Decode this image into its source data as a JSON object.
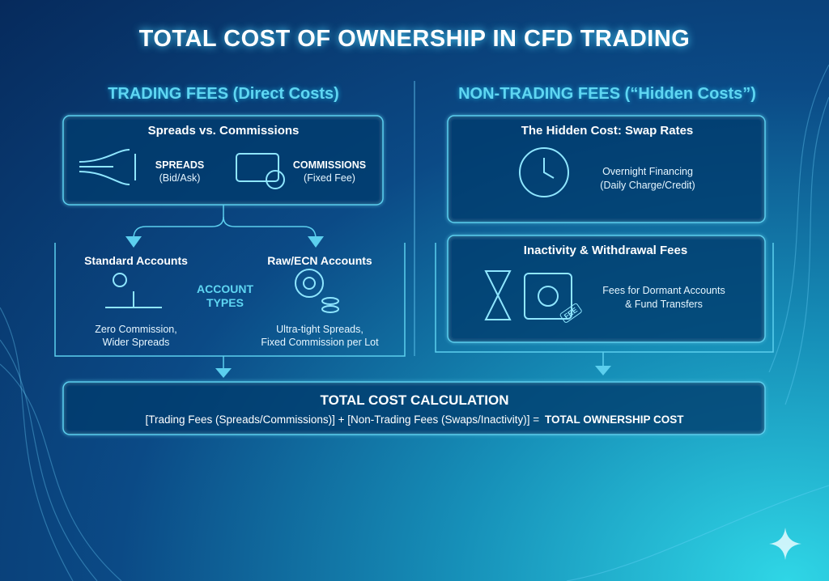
{
  "title": "TOTAL COST OF OWNERSHIP IN CFD TRADING",
  "trading_fees": {
    "heading": "TRADING FEES (Direct Costs)",
    "comparison": {
      "title": "Spreads vs. Commissions",
      "spreads": {
        "label": "SPREADS",
        "detail": "(Bid/Ask)"
      },
      "commissions": {
        "label": "COMMISSIONS",
        "detail": "(Fixed Fee)"
      }
    },
    "account_types": {
      "label": [
        "ACCOUNT",
        "TYPES"
      ],
      "standard": {
        "title": "Standard Accounts",
        "caption": [
          "Zero Commission,",
          "Wider Spreads"
        ]
      },
      "raw_ecn": {
        "title": "Raw/ECN Accounts",
        "caption": [
          "Ultra-tight Spreads,",
          "Fixed Commission per Lot"
        ]
      }
    }
  },
  "non_trading_fees": {
    "heading": "NON-TRADING FEES (“Hidden Costs”)",
    "swap_rates": {
      "title": "The Hidden Cost: Swap Rates",
      "caption": [
        "Overnight Financing",
        "(Daily Charge/Credit)"
      ]
    },
    "inactivity": {
      "title": "Inactivity & Withdrawal Fees",
      "caption": [
        "Fees for Dormant Accounts",
        "& Fund Transfers"
      ],
      "tag": "FEE"
    }
  },
  "total": {
    "title": "TOTAL COST CALCULATION",
    "formula": "[Trading Fees (Spreads/Commissions)] + [Non-Trading Fees (Swaps/Inactivity)] =",
    "result": "TOTAL OWNERSHIP COST"
  }
}
